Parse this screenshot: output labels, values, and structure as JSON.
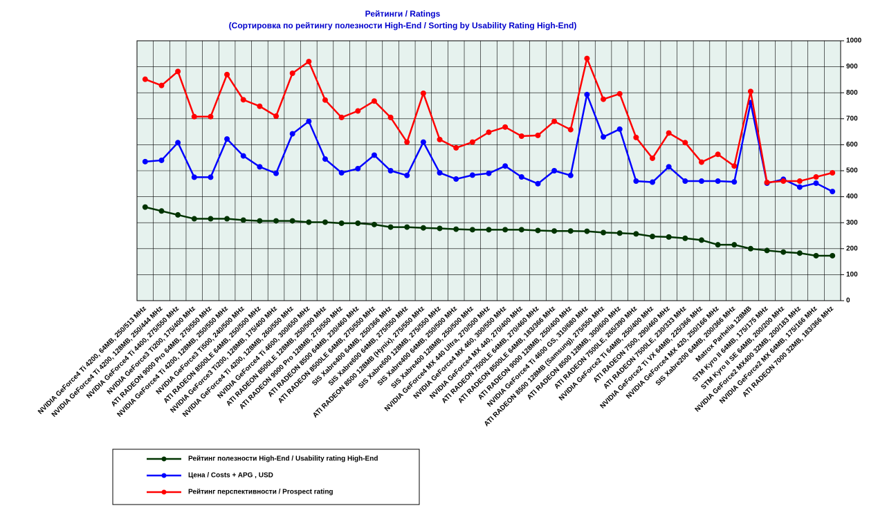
{
  "chart_data": {
    "type": "line",
    "title": "Рейтинги / Ratings",
    "subtitle": "(Сортировка по рейтингу полезности High-End / Sorting by Usability Rating High-End)",
    "categories": [
      "NVIDIA GeForce4 Ti 4200, 64MB, 250/513 MHz",
      "NVIDIA GeForce4 Ti 4200, 128MB, 250/444 MHz",
      "NVIDIA GeForce4 Ti 4400, 275/550 MHz",
      "NVIDIA GeForce3 Ti200, 175/400 MHz",
      "ATI RADEON 9000 Pro 64MB, 275/550 MHz",
      "NVIDIA GeForce4 Ti 4200, 128MB, 250/550 MHz",
      "NVIDIA GeForce3 Ti500, 240/500 MHz",
      "ATI RADEON 8500LE 64MB, 250/500 MHz",
      "NVIDIA GeForce3 Ti200, 128MB, 175/400 MHz",
      "NVIDIA GeForce4 Ti 4200, 128MB, 260/550 MHz",
      "NVIDIA GeForce4 Ti 4600, 300/650 MHz",
      "ATI RADEON 8500LE 128MB, 250/500 MHz",
      "ATI RADEON 9000 Pro 128MB, 275/550 MHz",
      "ATI RADEON 8500 64MB, 230/460 MHz",
      "ATI RADEON 8500LE 64MB, 275/550 MHz",
      "SIS Xabre400 64MB, 250/366 MHz",
      "SIS Xabre600 64MB, 275/550 MHz",
      "ATI RADEON 8500 128MB (Hynix), 275/550 MHz",
      "SIS Xabre600 128MB, 275/550 MHz",
      "SIS Xabre400 64MB, 250/500 MHz",
      "SIS Xabre400 128MB, 250/500 MHz",
      "NVIDIA GeForce4 MX 440 Ultra, 270/500 MHz",
      "NVIDIA GeForce4 MX 460, 300/550 MHz",
      "NVIDIA GeForce4 MX 440, 270/400 MHz",
      "ATI RADEON 7500LE 64MB, 270/460 MHz",
      "ATI RADEON 8500LE 64MB, 183/366 MHz",
      "ATI RADEON 9000 128MB, 250/400 MHz",
      "NVIDIA GeForce4 Ti 4600 GS, 310/680 MHz",
      "ATI RADEON 8500 128MB (Samsung), 275/550 MHz",
      "ATI RADEON 8500 128MB, 300/600 MHz",
      "ATI RADEON 7500LE, 265/390 MHz",
      "NVIDIA GeForce2 Ti 64MB, 250/400 MHz",
      "ATI RADEON 7500, 290/460 MHz",
      "ATI RADEON 7500LE, 230/333 MHz",
      "NVIDIA GeForce2 Ti VX 64MB, 225/366 MHz",
      "NVIDIA GeForce4 MX 420, 250/166 MHz",
      "SIS Xabre200 64MB, 200/366 MHz",
      "Matrox Parhelia 128MB",
      "STM Kyro II 64MB, 175/175 MHz",
      "STM Kyro II SE 64MB, 200/200 MHz",
      "NVIDIA GeForce2 MX400 32MB, 200/183 MHz",
      "NVIDIA GeForce2 MX 64MB, 175/166 MHz",
      "ATI RADEON 7000 32MB, 183/366 MHz"
    ],
    "series": [
      {
        "name": "Рейтинг полезности High-End / Usability rating High-End",
        "color": "#003300",
        "values": [
          360,
          345,
          330,
          315,
          315,
          315,
          310,
          307,
          307,
          307,
          302,
          302,
          298,
          298,
          293,
          283,
          283,
          280,
          278,
          275,
          273,
          273,
          273,
          273,
          270,
          268,
          268,
          267,
          262,
          260,
          257,
          247,
          245,
          240,
          233,
          215,
          215,
          200,
          193,
          187,
          183,
          173,
          173
        ]
      },
      {
        "name": "Цена / Costs + APG , USD",
        "color": "#0000ff",
        "values": [
          535,
          540,
          608,
          475,
          475,
          622,
          557,
          515,
          490,
          642,
          690,
          545,
          492,
          508,
          560,
          500,
          482,
          610,
          492,
          468,
          483,
          490,
          518,
          476,
          450,
          500,
          482,
          793,
          630,
          660,
          460,
          456,
          515,
          460,
          460,
          460,
          457,
          762,
          452,
          467,
          437,
          452,
          420
        ]
      },
      {
        "name": "Рейтинг перспективности / Prospect rating",
        "color": "#ff0000",
        "values": [
          852,
          828,
          882,
          708,
          708,
          870,
          773,
          748,
          710,
          875,
          920,
          772,
          705,
          730,
          768,
          705,
          610,
          798,
          620,
          588,
          610,
          648,
          668,
          633,
          636,
          690,
          658,
          932,
          775,
          796,
          628,
          548,
          645,
          608,
          533,
          563,
          518,
          805,
          455,
          460,
          460,
          476,
          492
        ]
      }
    ],
    "ylim": [
      0,
      1000
    ],
    "yticks": [
      0,
      100,
      200,
      300,
      400,
      500,
      600,
      700,
      800,
      900,
      1000
    ],
    "y_axis_position": "right",
    "grid": true
  }
}
